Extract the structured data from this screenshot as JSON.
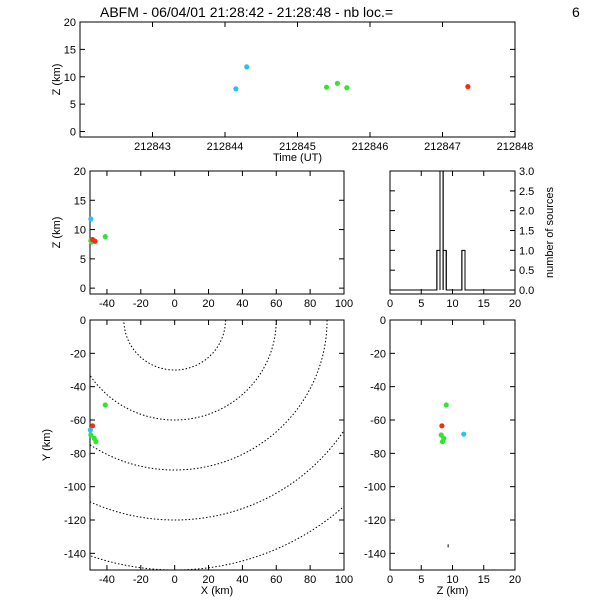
{
  "header": {
    "title": "ABFM - 06/04/01 21:28:42 - 21:28:48 - nb loc.=",
    "count": "6"
  },
  "colors": {
    "cyan": "#20c8f0",
    "green": "#2ee82e",
    "red": "#f03010",
    "axis": "#000000"
  },
  "chart_data": [
    {
      "id": "time_z",
      "type": "scatter",
      "xlabel": "Time (UT)",
      "ylabel": "Z (km)",
      "xlim": [
        212842,
        212848
      ],
      "ylim": [
        -1,
        20
      ],
      "xticks": [
        212843,
        212844,
        212845,
        212846,
        212847,
        212848
      ],
      "yticks": [
        0,
        5,
        10,
        15,
        20
      ],
      "points": [
        {
          "x": 212844.15,
          "y": 7.8,
          "color": "cyan"
        },
        {
          "x": 212844.3,
          "y": 11.8,
          "color": "cyan"
        },
        {
          "x": 212845.4,
          "y": 8.1,
          "color": "green"
        },
        {
          "x": 212845.55,
          "y": 8.8,
          "color": "green"
        },
        {
          "x": 212845.68,
          "y": 8.0,
          "color": "green"
        },
        {
          "x": 212847.35,
          "y": 8.2,
          "color": "red"
        }
      ]
    },
    {
      "id": "x_z",
      "type": "scatter",
      "xlabel": "",
      "ylabel": "Z (km)",
      "xlim": [
        -50,
        100
      ],
      "ylim": [
        -1,
        20
      ],
      "xticks": [
        -40,
        -20,
        0,
        20,
        40,
        60,
        80,
        100
      ],
      "yticks": [
        0,
        5,
        10,
        15,
        20
      ],
      "points": [
        {
          "x": -49.5,
          "y": 11.8,
          "color": "cyan"
        },
        {
          "x": -49.0,
          "y": 7.9,
          "color": "cyan"
        },
        {
          "x": -49.5,
          "y": 8.1,
          "color": "green"
        },
        {
          "x": -47.0,
          "y": 8.0,
          "color": "red"
        },
        {
          "x": -48.5,
          "y": 8.3,
          "color": "red"
        },
        {
          "x": -41.0,
          "y": 8.8,
          "color": "green"
        }
      ]
    },
    {
      "id": "z_hist",
      "type": "bar",
      "ylabel": "number of sources",
      "xlim": [
        0,
        20
      ],
      "ylim": [
        -0.1,
        3.0
      ],
      "xticks": [
        0,
        5,
        10,
        15,
        20
      ],
      "yticks": [
        0.0,
        0.5,
        1.0,
        1.5,
        2.0,
        2.5,
        3.0
      ],
      "bin_width": 0.5,
      "bins": [
        {
          "x": 7.5,
          "count": 1
        },
        {
          "x": 8.0,
          "count": 3
        },
        {
          "x": 8.5,
          "count": 1
        },
        {
          "x": 11.5,
          "count": 1
        }
      ]
    },
    {
      "id": "x_y",
      "type": "scatter",
      "xlabel": "X (km)",
      "ylabel": "Y (km)",
      "xlim": [
        -50,
        100
      ],
      "ylim": [
        -150,
        0
      ],
      "xticks": [
        -40,
        -20,
        0,
        20,
        40,
        60,
        80,
        100
      ],
      "yticks": [
        0,
        -20,
        -40,
        -60,
        -80,
        -100,
        -120,
        -140
      ],
      "contours": [
        30,
        60,
        90,
        120,
        150
      ],
      "points": [
        {
          "x": -41.0,
          "y": -51.0,
          "color": "green"
        },
        {
          "x": -48.5,
          "y": -63.5,
          "color": "red"
        },
        {
          "x": -49.5,
          "y": -69.0,
          "color": "green"
        },
        {
          "x": -47.5,
          "y": -71.0,
          "color": "green"
        },
        {
          "x": -46.5,
          "y": -73.0,
          "color": "green"
        },
        {
          "x": -49.8,
          "y": -66.0,
          "color": "cyan"
        }
      ]
    },
    {
      "id": "z_y",
      "type": "scatter",
      "xlabel": "Z (km)",
      "ylabel": "",
      "xlim": [
        0,
        20
      ],
      "ylim": [
        -150,
        0
      ],
      "xticks": [
        0,
        5,
        10,
        15,
        20
      ],
      "yticks": [
        0,
        -20,
        -40,
        -60,
        -80,
        -100,
        -120,
        -140
      ],
      "points": [
        {
          "x": 9.0,
          "y": -51.0,
          "color": "green"
        },
        {
          "x": 8.3,
          "y": -63.5,
          "color": "red"
        },
        {
          "x": 8.2,
          "y": -69.0,
          "color": "green"
        },
        {
          "x": 8.6,
          "y": -71.0,
          "color": "green"
        },
        {
          "x": 8.4,
          "y": -73.0,
          "color": "green"
        },
        {
          "x": 11.8,
          "y": -68.5,
          "color": "cyan"
        },
        {
          "x": 9.3,
          "y": -135.5,
          "color": "axis"
        }
      ]
    }
  ]
}
